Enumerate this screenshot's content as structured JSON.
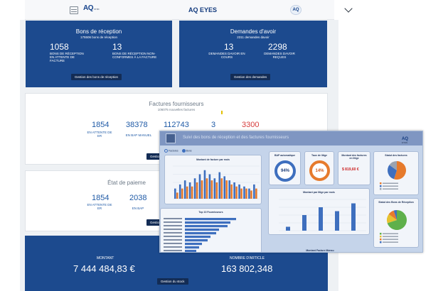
{
  "header": {
    "title": "AQ EYES",
    "logo_text": "AQ",
    "logo_sub": "remix",
    "round_logo": "AQ"
  },
  "bons_reception": {
    "title": "Bons de réception",
    "subtitle": "175506 bons de réception",
    "kpi1": {
      "value": "1058",
      "label": "BONS DE RÉCEPTION EN ATTENTE DE FACTURE"
    },
    "kpi2": {
      "value": "13",
      "label": "BONS DE RÉCEPTION NON-CONFORMES À LA FACTURE"
    },
    "button": "Gestion des bons de réception"
  },
  "demandes_avoir": {
    "title": "Demandes d'avoir",
    "subtitle": "2311 demandes davoir",
    "kpi1": {
      "value": "13",
      "label": "DEMANDES DAVOIR EN COURS"
    },
    "kpi2": {
      "value": "2298",
      "label": "DEMANDES DAVOIR REÇUES"
    },
    "button": "Gestion des demandes"
  },
  "factures": {
    "title": "Factures fournisseurs",
    "subtitle": "106075 nouvelles factures",
    "kpi1": {
      "value": "1854",
      "label": "EN ATTENTE DE ER"
    },
    "kpi2": {
      "value": "38378",
      "label": "EN BAP MANUEL"
    },
    "kpi3": {
      "value": "112743"
    },
    "kpi4": {
      "value": "3"
    },
    "kpi5": {
      "value": "3300"
    },
    "button": "Gestion"
  },
  "paiement": {
    "title": "État de paieme",
    "kpi1": {
      "value": "1854",
      "label": "EN ATTENTE DE ER"
    },
    "kpi2": {
      "value": "2038",
      "label": "EN BAP"
    },
    "button": "Gestion"
  },
  "stock": {
    "montant_label": "MONTANT",
    "montant_value": "7 444 484,83 €",
    "articles_label": "NOMBRE D'ARTICLE",
    "articles_value": "163 802,348",
    "button": "Gestion du stock"
  },
  "dashboard": {
    "header_text": "Suivi des bons de réception et des factures fournisseurs",
    "logo": "AQ",
    "logo_sub": "EYES",
    "tabs": [
      "Factures",
      "Bons"
    ],
    "panels": {
      "montant_mois": "Montant de facture par mois",
      "bap_auto": "BAP automatique",
      "taux_litige": "Taux de litige",
      "montant_litige": "Montant des factures en litige",
      "statut_factures": "Statut des factures",
      "montant_litige_mois": "Montant par litige par mois",
      "top_fournisseurs": "Top 10 Fournisseurs",
      "statut_bons": "Statut des Bons de Réception",
      "montant_bottom": "Montant Facture Mensu"
    },
    "gauge_bap": "94%",
    "gauge_litige": "14%",
    "montant_litige_value": "$ 819,60 €",
    "colors": {
      "blue": "#3e6fbe",
      "orange": "#e67a2c",
      "grey": "#9aa3b0",
      "green": "#5fb04b",
      "yellow": "#e6c12f",
      "red": "#cc1f1f"
    }
  },
  "chart_data": [
    {
      "type": "bar",
      "title": "Montant de facture par mois",
      "series": [
        {
          "values": [
            5,
            7,
            9,
            8,
            10,
            12,
            14,
            12,
            10,
            13,
            11,
            9,
            8,
            7,
            6,
            5,
            7
          ]
        },
        {
          "values": [
            3,
            5,
            6,
            6,
            8,
            9,
            10,
            9,
            8,
            10,
            9,
            7,
            6,
            5,
            5,
            4,
            5
          ]
        }
      ]
    },
    {
      "type": "bar",
      "title": "Montant par litige par mois",
      "values": [
        1,
        4,
        6,
        5,
        7
      ]
    },
    {
      "type": "bar",
      "title": "Top 10 Fournisseurs",
      "values": [
        9,
        8,
        7.5,
        6,
        5.5,
        4.5,
        4,
        3,
        2.5,
        2
      ]
    }
  ]
}
